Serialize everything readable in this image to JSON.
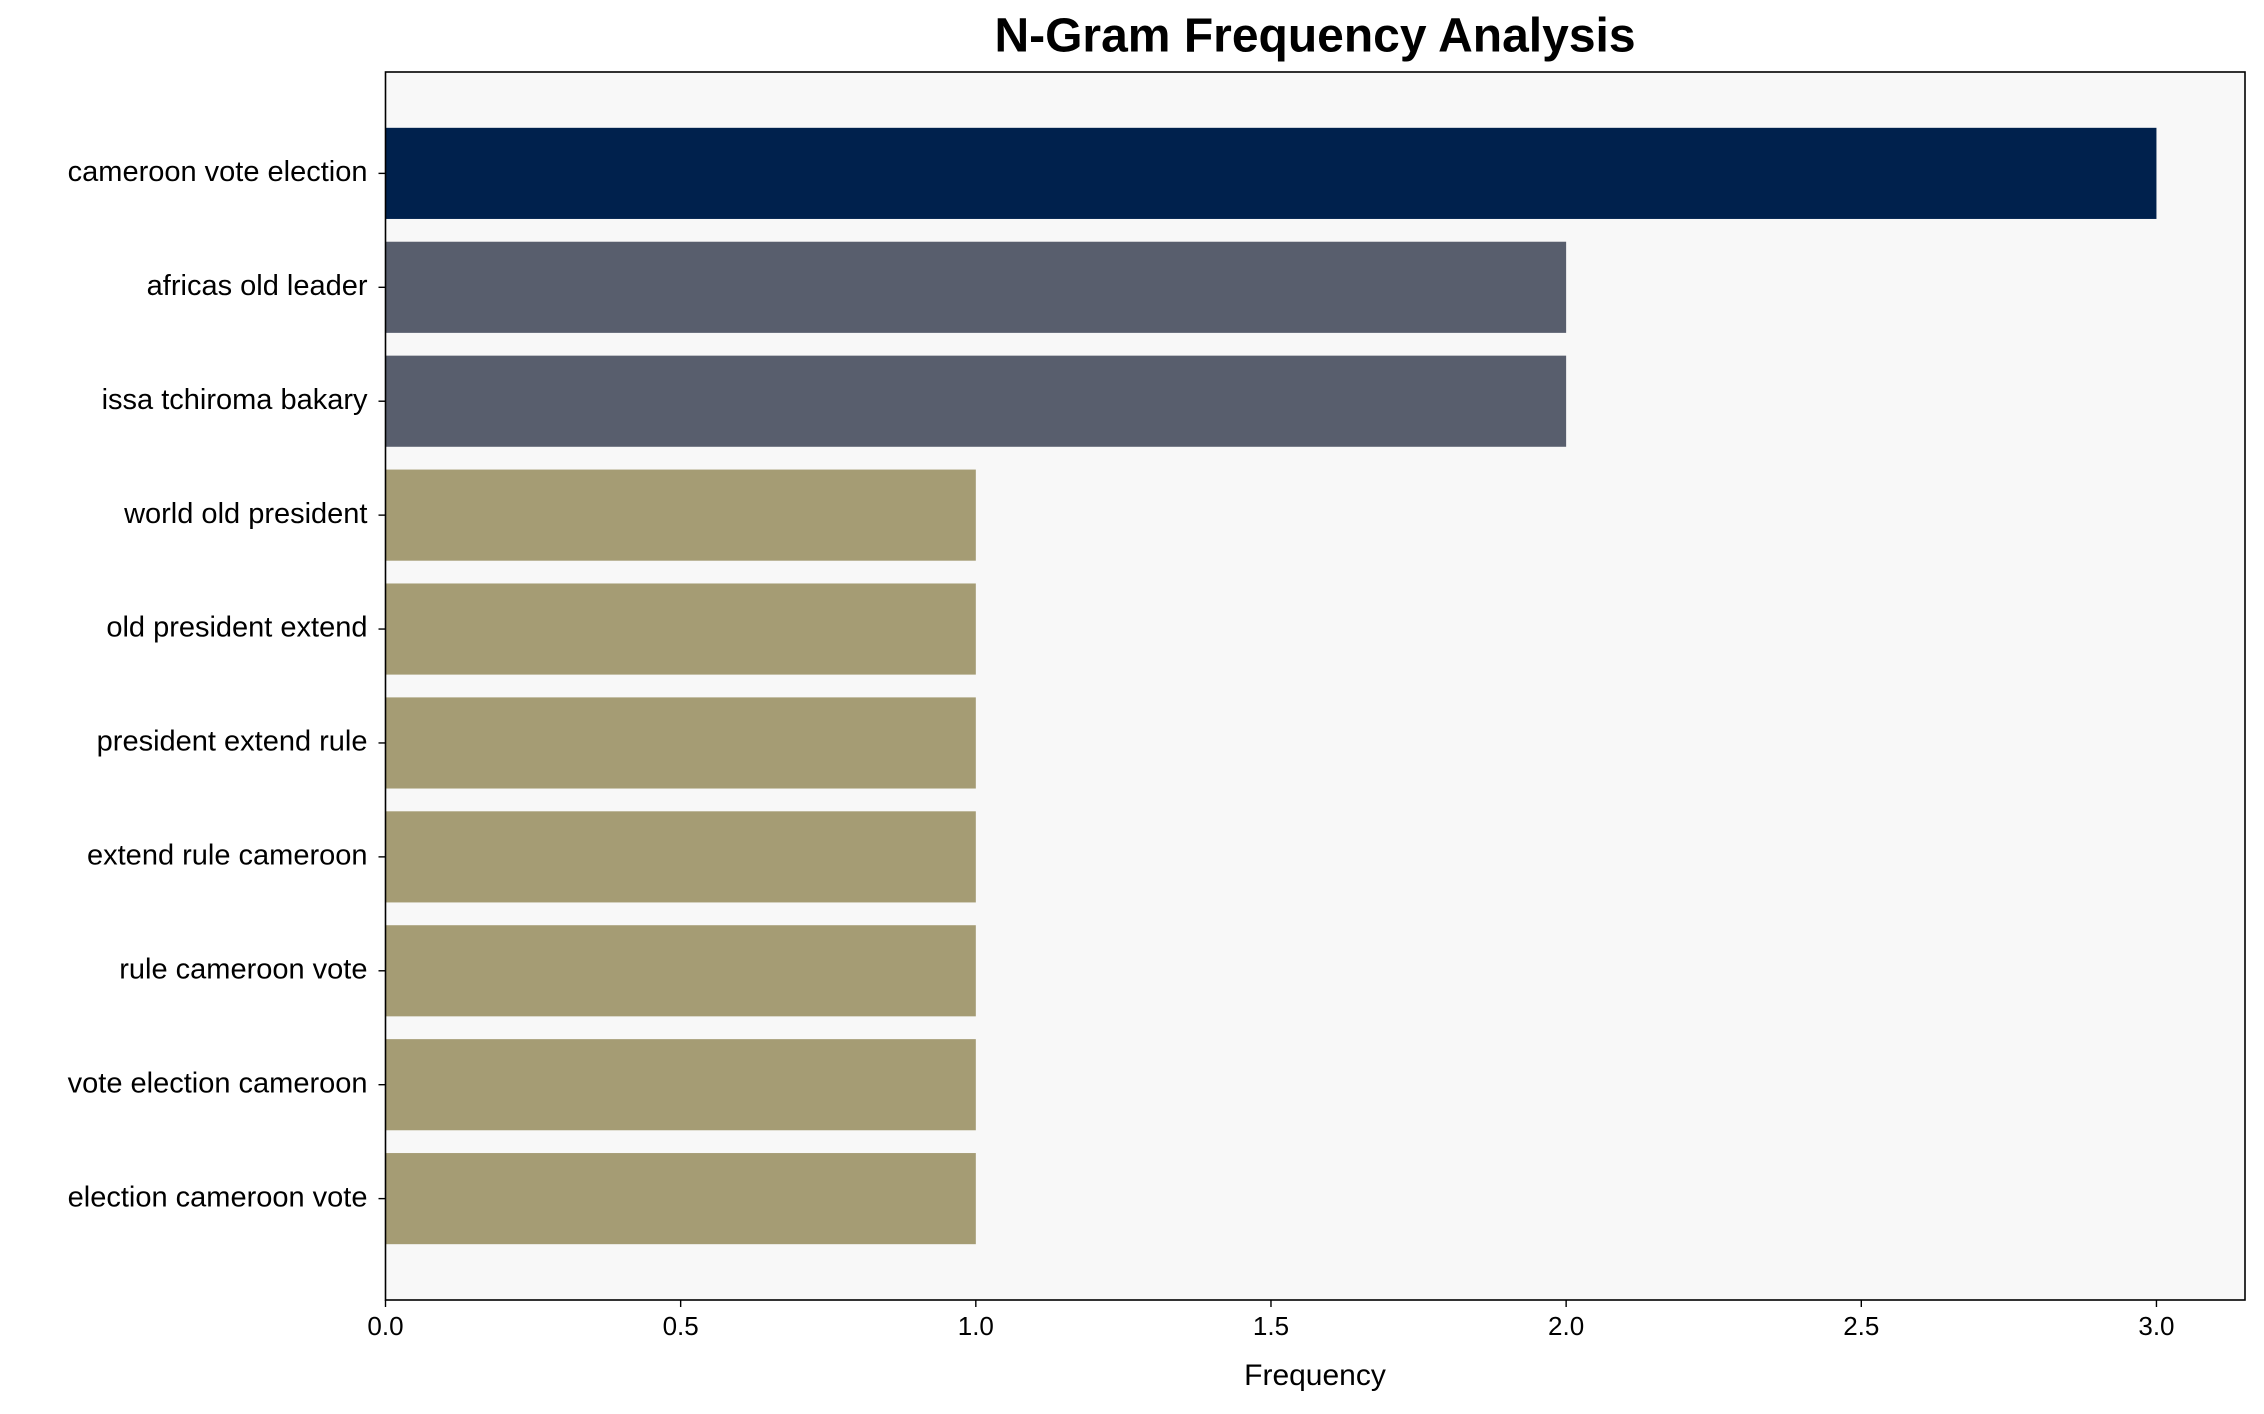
{
  "chart_data": {
    "type": "bar",
    "orientation": "horizontal",
    "title": "N-Gram Frequency Analysis",
    "xlabel": "Frequency",
    "categories": [
      "cameroon vote election",
      "africas old leader",
      "issa tchiroma bakary",
      "world old president",
      "old president extend",
      "president extend rule",
      "extend rule cameroon",
      "rule cameroon vote",
      "vote election cameroon",
      "election cameroon vote"
    ],
    "values": [
      3,
      2,
      2,
      1,
      1,
      1,
      1,
      1,
      1,
      1
    ],
    "colors": [
      "#00214d",
      "#585e6d",
      "#585e6d",
      "#a59c74",
      "#a59c74",
      "#a59c74",
      "#a59c74",
      "#a59c74",
      "#a59c74",
      "#a59c74"
    ],
    "xlim": [
      0,
      3.15
    ],
    "xticks": [
      {
        "value": 0,
        "label": "0.0"
      },
      0.5,
      {
        "value": 1,
        "label": "1.0"
      },
      1.5,
      {
        "value": 2,
        "label": "2.0"
      },
      2.5,
      {
        "value": 3,
        "label": "3.0"
      }
    ],
    "background": "#f8f8f8"
  }
}
